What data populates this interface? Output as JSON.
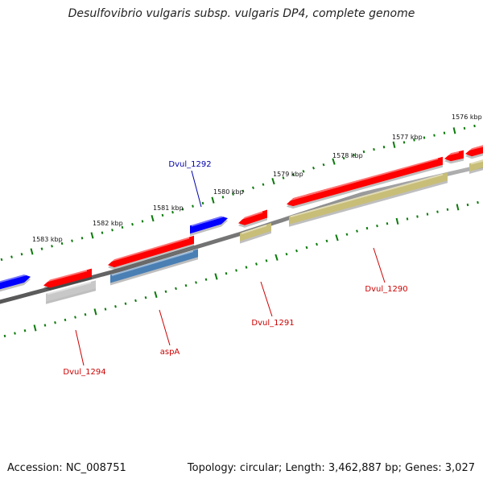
{
  "title": "Desulfovibrio vulgaris subsp. vulgaris DP4, complete genome",
  "accession": "Accession: NC_008751",
  "summary": "Topology: circular; Length: 3,462,887 bp; Genes: 3,027",
  "colors": {
    "forward_gene": "#ff0000",
    "reverse_gene": "#0000ff",
    "backbone": "#777777",
    "cds_olive": "#c8be78",
    "cds_steelblue": "#4a7fb4",
    "cds_grey": "#c8c8c8",
    "tick": "#0a7a0a",
    "label_red": "#cc0000",
    "label_blue": "#0000aa"
  },
  "ticks": [
    {
      "label": "1583 kbp"
    },
    {
      "label": "1582 kbp"
    },
    {
      "label": "1581 kbp"
    },
    {
      "label": "1580 kbp"
    },
    {
      "label": "1579 kbp"
    },
    {
      "label": "1578 kbp"
    },
    {
      "label": "1577 kbp"
    },
    {
      "label": "1576 kbp"
    }
  ],
  "gene_labels": [
    {
      "text": "Dvul_1292",
      "color": "#0000aa"
    },
    {
      "text": "Dvul_1294",
      "color": "#cc0000"
    },
    {
      "text": "aspA",
      "color": "#cc0000"
    },
    {
      "text": "Dvul_1291",
      "color": "#cc0000"
    },
    {
      "text": "Dvul_1290",
      "color": "#cc0000"
    }
  ]
}
